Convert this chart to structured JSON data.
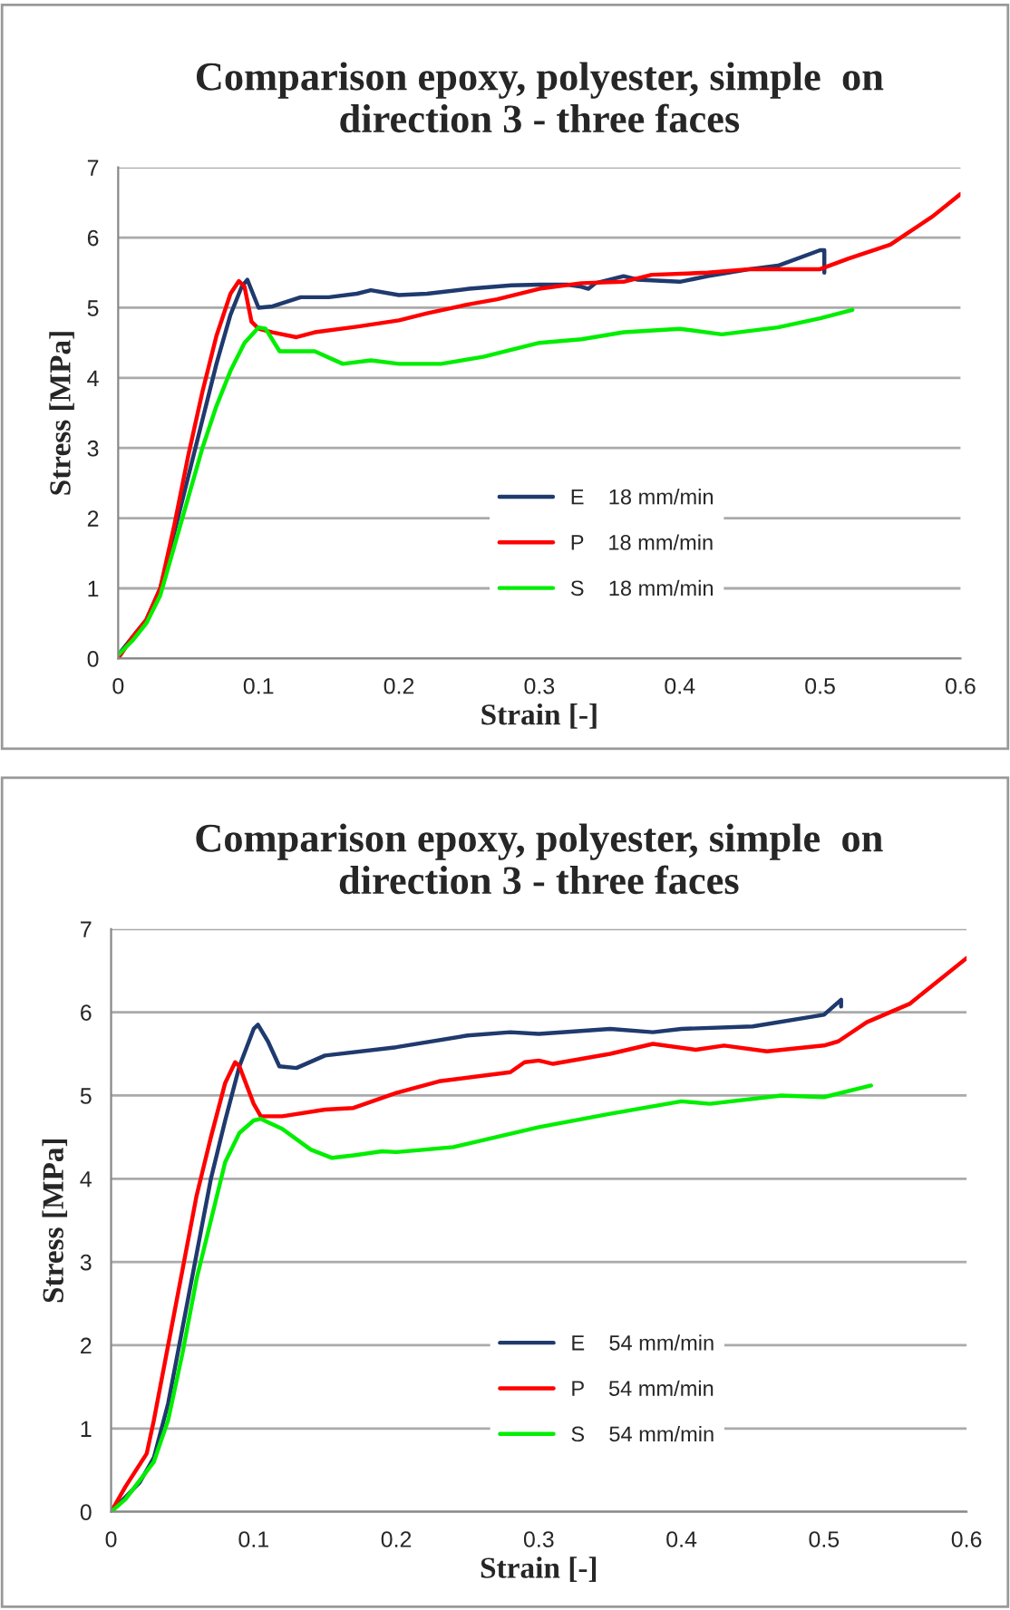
{
  "chart_data": [
    {
      "type": "line",
      "title": "Comparison epoxy, polyester, simple  on\ndirection 3 - three faces",
      "xlabel": "Strain [-]",
      "ylabel": "Stress [MPa]",
      "xlim": [
        0,
        0.6
      ],
      "ylim": [
        0,
        7
      ],
      "xticks": [
        0,
        0.1,
        0.2,
        0.3,
        0.4,
        0.5,
        0.6
      ],
      "yticks": [
        0,
        1,
        2,
        3,
        4,
        5,
        6,
        7
      ],
      "grid": "y",
      "legend": "bottom",
      "marker": "none",
      "line_style": "solid",
      "series": [
        {
          "name": "E    18 mm/min",
          "color": "#1f3a6e",
          "x": [
            0,
            0.01,
            0.02,
            0.03,
            0.04,
            0.05,
            0.06,
            0.07,
            0.08,
            0.088,
            0.092,
            0.096,
            0.1,
            0.11,
            0.13,
            0.15,
            0.17,
            0.18,
            0.2,
            0.22,
            0.25,
            0.28,
            0.3,
            0.32,
            0.33,
            0.335,
            0.34,
            0.36,
            0.37,
            0.4,
            0.42,
            0.45,
            0.47,
            0.5,
            0.503,
            0.503
          ],
          "values": [
            0.05,
            0.3,
            0.55,
            1.0,
            1.8,
            2.6,
            3.4,
            4.2,
            4.9,
            5.3,
            5.4,
            5.2,
            5.0,
            5.02,
            5.15,
            5.15,
            5.2,
            5.25,
            5.18,
            5.2,
            5.27,
            5.32,
            5.33,
            5.33,
            5.3,
            5.27,
            5.35,
            5.45,
            5.4,
            5.37,
            5.45,
            5.55,
            5.6,
            5.82,
            5.82,
            5.5
          ]
        },
        {
          "name": "P    18 mm/min",
          "color": "#ff0000",
          "x": [
            0,
            0.01,
            0.02,
            0.03,
            0.04,
            0.05,
            0.06,
            0.07,
            0.08,
            0.086,
            0.09,
            0.095,
            0.1,
            0.11,
            0.127,
            0.14,
            0.17,
            0.2,
            0.22,
            0.25,
            0.27,
            0.3,
            0.33,
            0.36,
            0.38,
            0.42,
            0.45,
            0.48,
            0.5,
            0.52,
            0.55,
            0.58,
            0.6
          ],
          "values": [
            0,
            0.3,
            0.55,
            1.0,
            1.9,
            2.9,
            3.8,
            4.6,
            5.2,
            5.38,
            5.3,
            4.8,
            4.7,
            4.65,
            4.58,
            4.65,
            4.73,
            4.82,
            4.92,
            5.05,
            5.12,
            5.27,
            5.35,
            5.37,
            5.47,
            5.5,
            5.55,
            5.55,
            5.55,
            5.7,
            5.9,
            6.3,
            6.62
          ]
        },
        {
          "name": "S    18 mm/min",
          "color": "#00ee00",
          "x": [
            0,
            0.01,
            0.02,
            0.03,
            0.04,
            0.05,
            0.06,
            0.07,
            0.08,
            0.09,
            0.1,
            0.105,
            0.115,
            0.14,
            0.16,
            0.18,
            0.2,
            0.23,
            0.26,
            0.3,
            0.33,
            0.36,
            0.4,
            0.43,
            0.47,
            0.5,
            0.523
          ],
          "values": [
            0.05,
            0.25,
            0.5,
            0.9,
            1.6,
            2.3,
            3.0,
            3.6,
            4.1,
            4.5,
            4.72,
            4.7,
            4.38,
            4.38,
            4.2,
            4.25,
            4.2,
            4.2,
            4.3,
            4.5,
            4.55,
            4.65,
            4.7,
            4.62,
            4.72,
            4.85,
            4.97
          ]
        }
      ]
    },
    {
      "type": "line",
      "title": "Comparison epoxy, polyester, simple  on\ndirection 3 - three faces",
      "xlabel": "Strain [-]",
      "ylabel": "Stress [MPa]",
      "xlim": [
        0,
        0.6
      ],
      "ylim": [
        0,
        7
      ],
      "xticks": [
        0,
        0.1,
        0.2,
        0.3,
        0.4,
        0.5,
        0.6
      ],
      "yticks": [
        0,
        1,
        2,
        3,
        4,
        5,
        6,
        7
      ],
      "grid": "y",
      "legend": "bottom",
      "marker": "none",
      "line_style": "solid",
      "series": [
        {
          "name": "E    54 mm/min",
          "color": "#1f3a6e",
          "x": [
            0,
            0.02,
            0.03,
            0.04,
            0.05,
            0.06,
            0.07,
            0.08,
            0.09,
            0.1,
            0.103,
            0.11,
            0.118,
            0.13,
            0.15,
            0.2,
            0.25,
            0.28,
            0.3,
            0.35,
            0.38,
            0.4,
            0.45,
            0.5,
            0.512,
            0.512
          ],
          "values": [
            0,
            0.35,
            0.65,
            1.3,
            2.2,
            3.1,
            4.0,
            4.7,
            5.35,
            5.8,
            5.85,
            5.65,
            5.35,
            5.33,
            5.48,
            5.58,
            5.72,
            5.76,
            5.74,
            5.8,
            5.76,
            5.8,
            5.83,
            5.97,
            6.15,
            6.07
          ]
        },
        {
          "name": "P    54 mm/min",
          "color": "#ff0000",
          "x": [
            0,
            0.01,
            0.025,
            0.03,
            0.04,
            0.05,
            0.06,
            0.07,
            0.08,
            0.087,
            0.09,
            0.1,
            0.105,
            0.12,
            0.15,
            0.17,
            0.2,
            0.23,
            0.28,
            0.29,
            0.3,
            0.31,
            0.35,
            0.38,
            0.41,
            0.43,
            0.46,
            0.5,
            0.51,
            0.53,
            0.56,
            0.6
          ],
          "values": [
            0,
            0.3,
            0.7,
            1.1,
            2.0,
            2.9,
            3.8,
            4.5,
            5.15,
            5.4,
            5.35,
            4.9,
            4.75,
            4.75,
            4.83,
            4.85,
            5.03,
            5.17,
            5.28,
            5.4,
            5.42,
            5.38,
            5.5,
            5.62,
            5.55,
            5.6,
            5.53,
            5.6,
            5.65,
            5.88,
            6.1,
            6.65
          ]
        },
        {
          "name": "S    54 mm/min",
          "color": "#00ee00",
          "x": [
            0,
            0.01,
            0.03,
            0.04,
            0.05,
            0.06,
            0.07,
            0.08,
            0.09,
            0.1,
            0.105,
            0.12,
            0.14,
            0.155,
            0.17,
            0.19,
            0.2,
            0.24,
            0.3,
            0.35,
            0.4,
            0.42,
            0.47,
            0.5,
            0.533
          ],
          "values": [
            0,
            0.15,
            0.6,
            1.1,
            1.9,
            2.8,
            3.5,
            4.2,
            4.55,
            4.7,
            4.72,
            4.6,
            4.35,
            4.25,
            4.28,
            4.33,
            4.32,
            4.38,
            4.62,
            4.78,
            4.93,
            4.9,
            5.0,
            4.98,
            5.12
          ]
        }
      ]
    }
  ]
}
